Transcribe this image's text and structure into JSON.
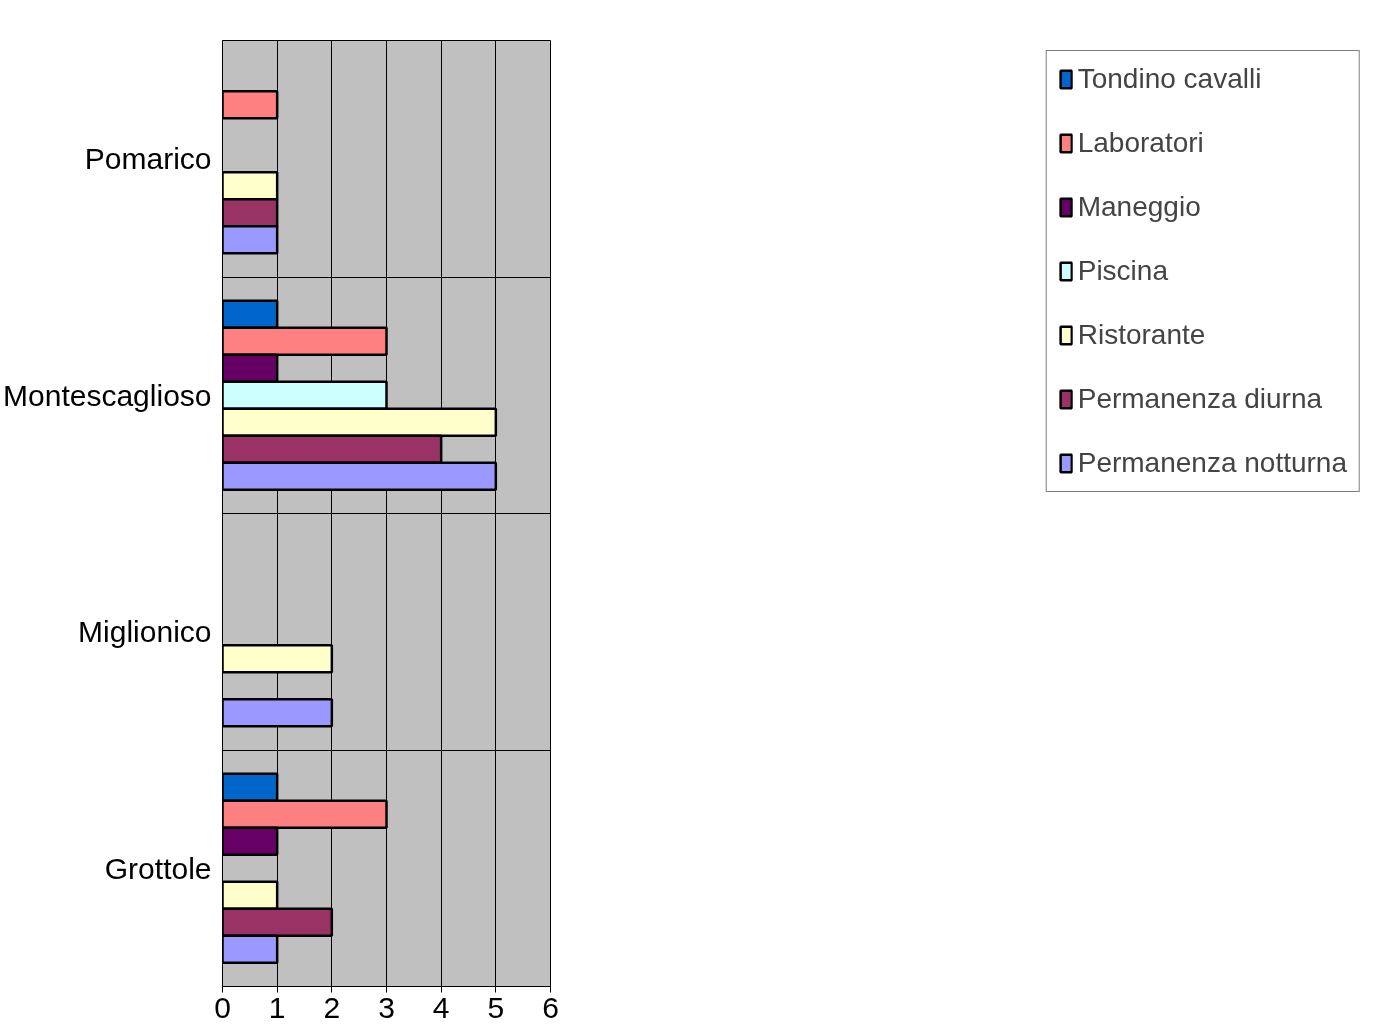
{
  "chart_data": {
    "type": "bar",
    "orientation": "horizontal",
    "categories": [
      "Pomarico",
      "Montescaglioso",
      "Miglionico",
      "Grottole"
    ],
    "series": [
      {
        "name": "Tondino cavalli",
        "color": "#0066cc",
        "values": [
          null,
          1,
          null,
          1
        ]
      },
      {
        "name": "Laboratori",
        "color": "#ff8080",
        "values": [
          1,
          3,
          null,
          3
        ]
      },
      {
        "name": "Maneggio",
        "color": "#660066",
        "values": [
          null,
          1,
          null,
          1
        ]
      },
      {
        "name": "Piscina",
        "color": "#ccffff",
        "values": [
          null,
          3,
          null,
          null
        ]
      },
      {
        "name": "Ristorante",
        "color": "#ffffcc",
        "values": [
          1,
          5,
          2,
          1
        ]
      },
      {
        "name": "Permanenza diurna",
        "color": "#993366",
        "values": [
          1,
          4,
          null,
          2
        ]
      },
      {
        "name": "Permanenza notturna",
        "color": "#9999ff",
        "values": [
          1,
          5,
          2,
          1
        ]
      }
    ],
    "xlim": [
      0,
      6
    ],
    "xticks": [
      0,
      1,
      2,
      3,
      4,
      5,
      6
    ],
    "grid": true,
    "legend": "right"
  }
}
